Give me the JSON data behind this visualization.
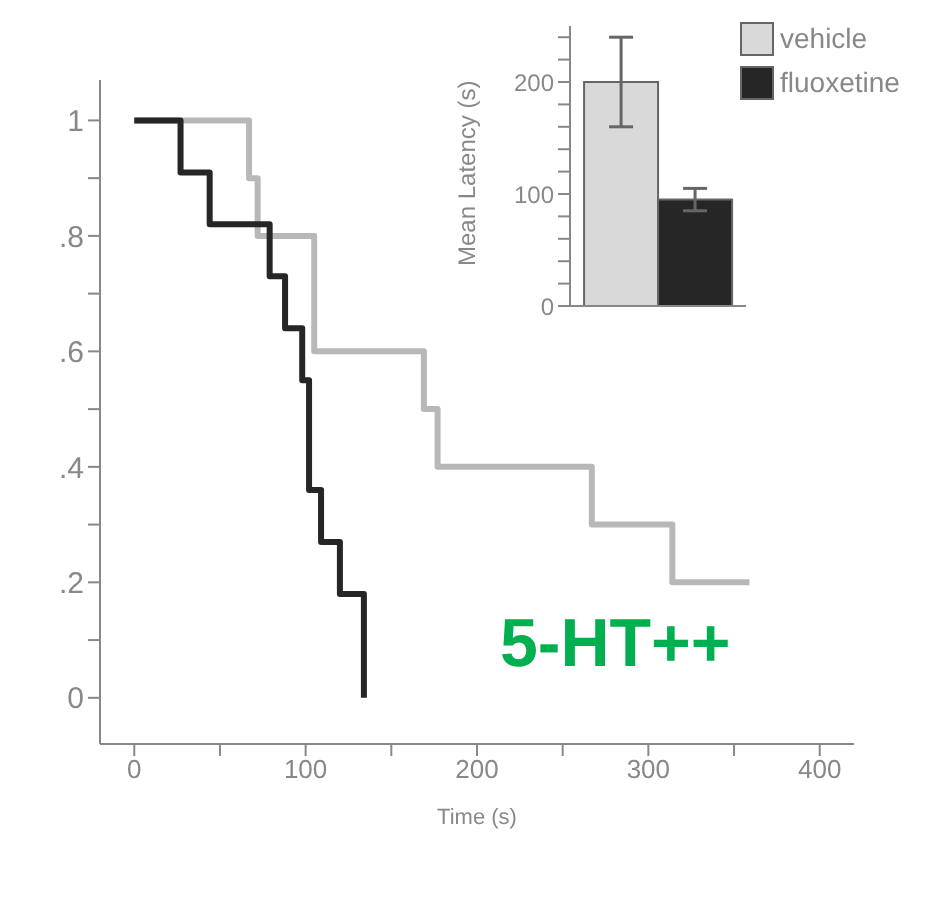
{
  "chart_data": [
    {
      "type": "step",
      "xlabel": "Time (s)",
      "xlim": [
        -20,
        420
      ],
      "ylim": [
        -0.08,
        1.07
      ],
      "xticks": [
        0,
        {
          "value": 50,
          "label": null
        },
        100,
        {
          "value": 150,
          "label": null
        },
        200,
        {
          "value": 250,
          "label": null
        },
        300,
        {
          "value": 350,
          "label": null
        },
        400
      ],
      "yticks": [
        0,
        {
          "value": 0.1,
          "label": null
        },
        {
          "value": 0.2,
          "label": ".2"
        },
        {
          "value": 0.3,
          "label": null
        },
        {
          "value": 0.4,
          "label": ".4"
        },
        {
          "value": 0.5,
          "label": null
        },
        {
          "value": 0.6,
          "label": ".6"
        },
        {
          "value": 0.7,
          "label": null
        },
        {
          "value": 0.8,
          "label": ".8"
        },
        {
          "value": 0.9,
          "label": null
        },
        1
      ],
      "series": [
        {
          "color": "#b8b8b8",
          "x": [
            0,
            67,
            72,
            105,
            169,
            177,
            267,
            314,
            359
          ],
          "values": [
            1,
            0.9,
            0.8,
            0.6,
            0.5,
            0.4,
            0.3,
            0.2,
            0.2
          ]
        },
        {
          "color": "#262626",
          "x": [
            0,
            27,
            44,
            79,
            88,
            98,
            102,
            109,
            120,
            134
          ],
          "values": [
            1,
            0.91,
            0.82,
            0.73,
            0.64,
            0.55,
            0.36,
            0.27,
            0.18,
            0
          ]
        }
      ],
      "annotations": [
        "5-HT++"
      ]
    },
    {
      "type": "bar",
      "ylabel": "Mean Latency (s)",
      "categories": [
        null
      ],
      "ylim": [
        0,
        250
      ],
      "yticks": [
        0,
        {
          "value": 20,
          "label": null
        },
        {
          "value": 40,
          "label": null
        },
        {
          "value": 60,
          "label": null
        },
        {
          "value": 80,
          "label": null
        },
        100,
        {
          "value": 120,
          "label": null
        },
        {
          "value": 140,
          "label": null
        },
        {
          "value": 160,
          "label": null
        },
        {
          "value": 180,
          "label": null
        },
        200,
        {
          "value": 220,
          "label": null
        },
        {
          "value": 240,
          "label": null
        }
      ],
      "legend": "top right",
      "series": [
        {
          "name": "vehicle",
          "color": "#d9d9d9",
          "values": [
            200
          ],
          "errors": [
            40
          ]
        },
        {
          "name": "fluoxetine",
          "color": "#262626",
          "values": [
            95
          ],
          "errors": [
            10
          ]
        }
      ]
    }
  ]
}
